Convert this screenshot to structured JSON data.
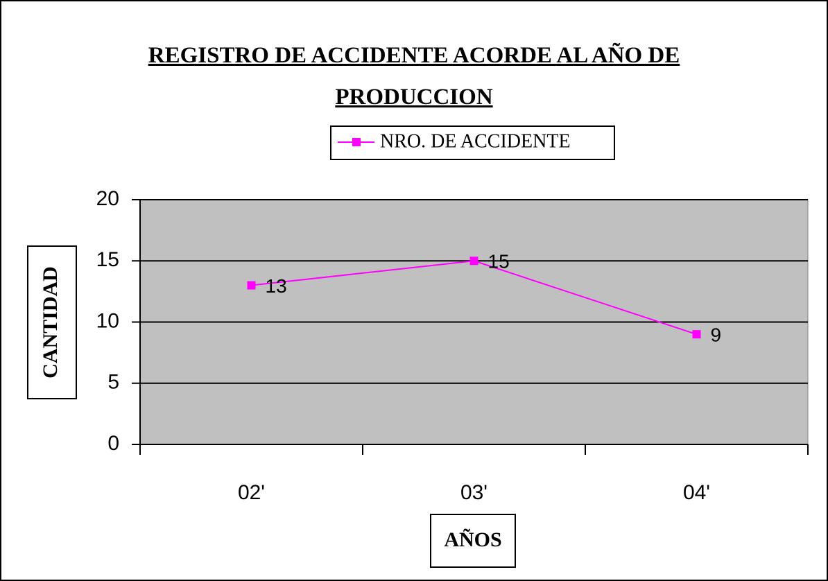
{
  "chart_data": {
    "type": "line",
    "title": "REGISTRO DE ACCIDENTE ACORDE AL AÑO DE PRODUCCION",
    "x_label": "AÑOS",
    "y_label": "CANTIDAD",
    "categories": [
      "02'",
      "03'",
      "04'"
    ],
    "series": [
      {
        "name": "NRO. DE ACCIDENTE",
        "color": "#ff00ff",
        "values": [
          13,
          15,
          9
        ]
      }
    ],
    "ylim": [
      0,
      20
    ],
    "yticks": [
      0,
      5,
      10,
      15,
      20
    ],
    "grid": true,
    "legend": "top"
  }
}
